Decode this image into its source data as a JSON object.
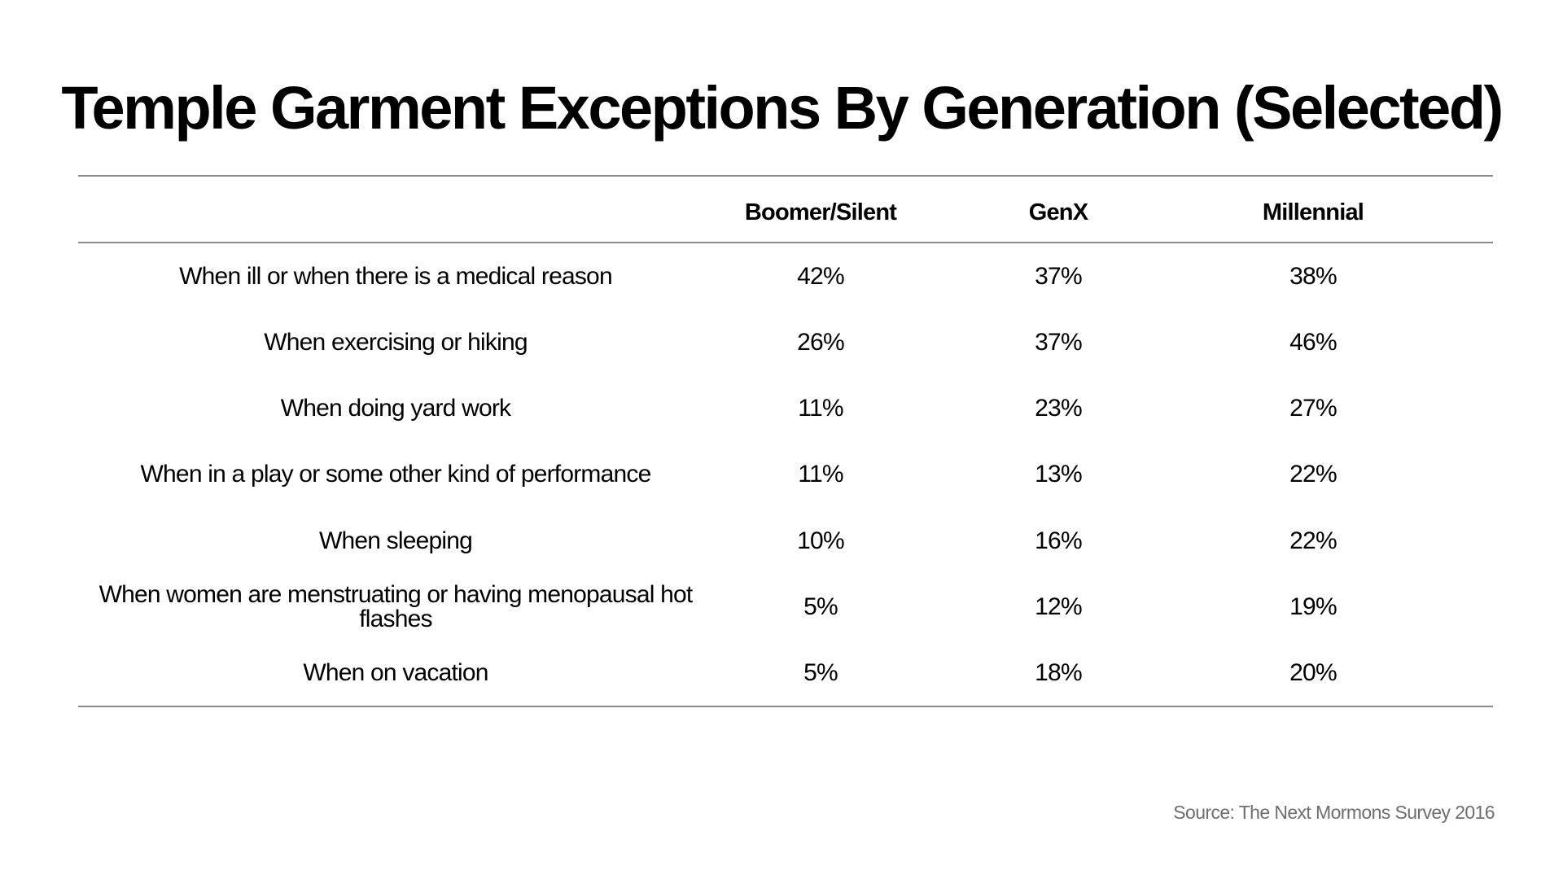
{
  "title": "Temple Garment Exceptions By Generation (Selected)",
  "source": "Source: The Next Mormons Survey 2016",
  "chart_data": {
    "type": "table",
    "title": "Temple Garment Exceptions By Generation (Selected)",
    "columns": [
      "",
      "Boomer/Silent",
      "GenX",
      "Millennial"
    ],
    "rows": [
      {
        "label": "When ill or when there is a medical reason",
        "values": [
          "42%",
          "37%",
          "38%"
        ]
      },
      {
        "label": "When exercising or hiking",
        "values": [
          "26%",
          "37%",
          "46%"
        ]
      },
      {
        "label": "When doing yard work",
        "values": [
          "11%",
          "23%",
          "27%"
        ]
      },
      {
        "label": "When in a play or some other kind of performance",
        "values": [
          "11%",
          "13%",
          "22%"
        ]
      },
      {
        "label": "When sleeping",
        "values": [
          "10%",
          "16%",
          "22%"
        ]
      },
      {
        "label": "When women are menstruating or having menopausal hot flashes",
        "values": [
          "5%",
          "12%",
          "19%"
        ]
      },
      {
        "label": "When on vacation",
        "values": [
          "5%",
          "18%",
          "20%"
        ]
      }
    ],
    "series": [
      {
        "name": "Boomer/Silent",
        "values": [
          42,
          26,
          11,
          11,
          10,
          5,
          5
        ]
      },
      {
        "name": "GenX",
        "values": [
          37,
          37,
          23,
          13,
          16,
          12,
          18
        ]
      },
      {
        "name": "Millennial",
        "values": [
          38,
          46,
          27,
          22,
          22,
          19,
          20
        ]
      }
    ],
    "unit": "%"
  }
}
